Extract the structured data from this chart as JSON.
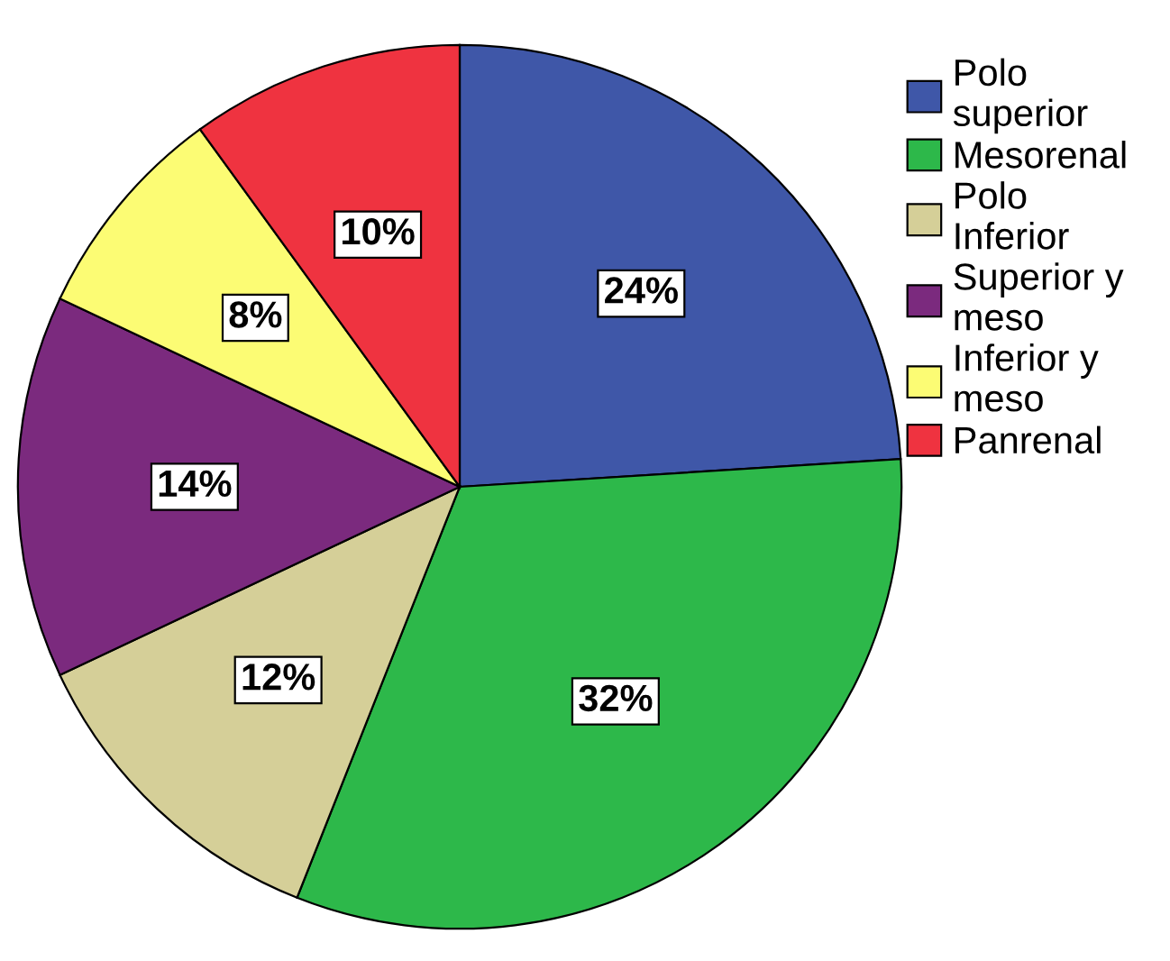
{
  "chart_data": {
    "type": "pie",
    "categories": [
      "Polo\nsuperior",
      "Mesorenal",
      "Polo\nInferior",
      "Superior y\nmeso",
      "Inferior y\nmeso",
      "Panrenal"
    ],
    "values": [
      24,
      32,
      12,
      14,
      8,
      10
    ],
    "colors": [
      "#3f57a8",
      "#2db84a",
      "#d5cf98",
      "#7b2a7e",
      "#fcfc74",
      "#ef3340"
    ],
    "value_labels": [
      "24%",
      "32%",
      "12%",
      "14%",
      "8%",
      "10%"
    ],
    "legend": "top right"
  }
}
